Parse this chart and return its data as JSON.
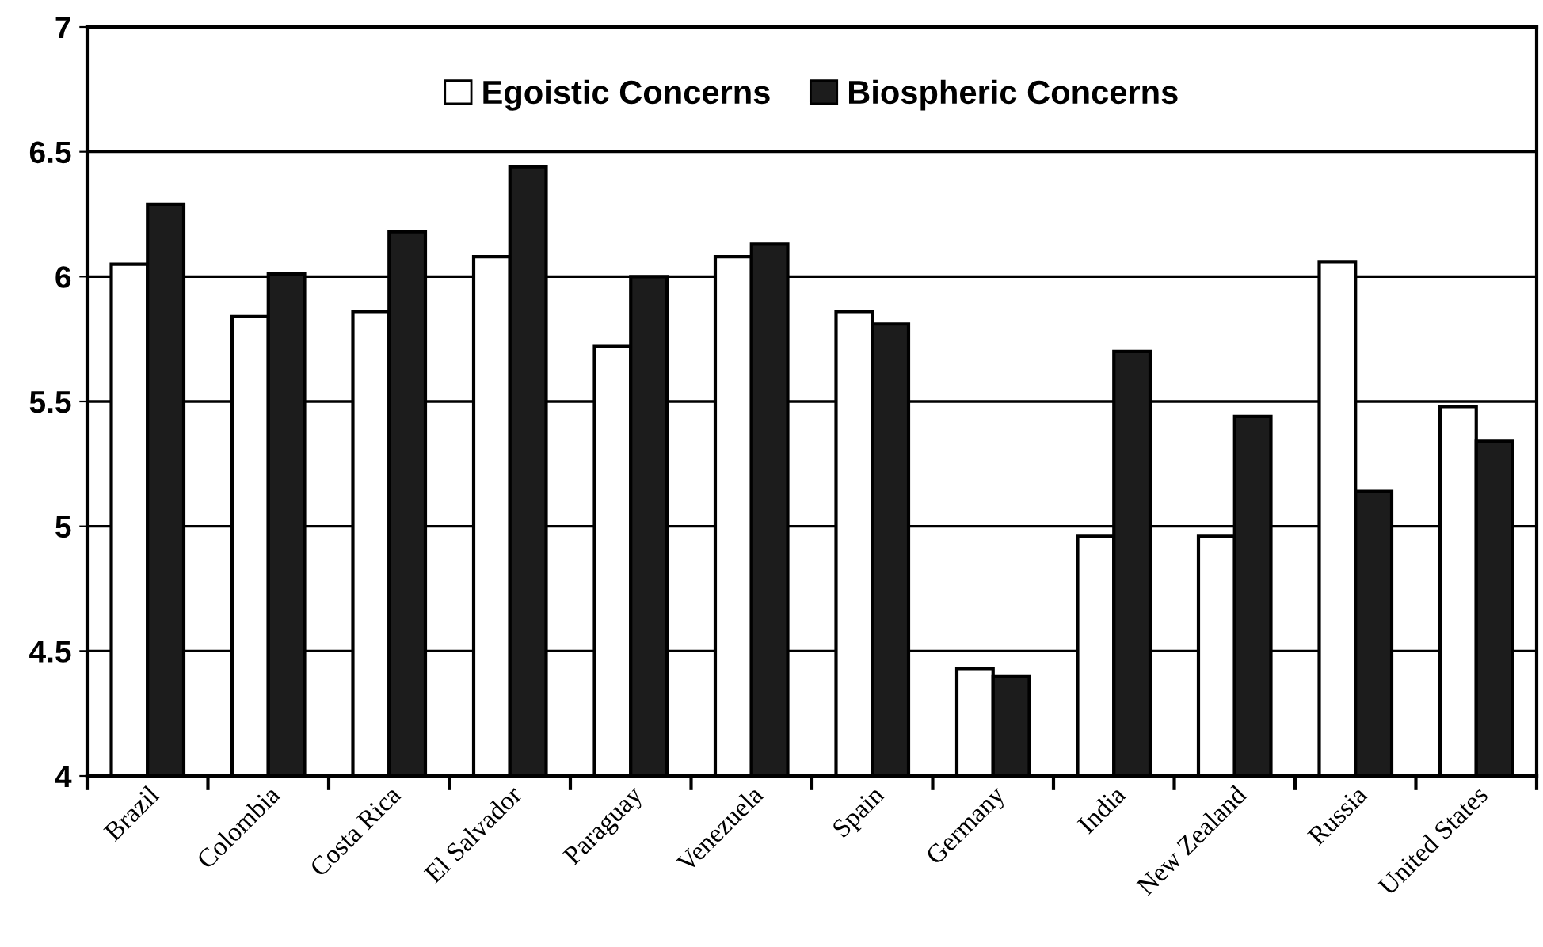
{
  "chart_data": {
    "type": "bar",
    "categories": [
      "Brazil",
      "Colombia",
      "Costa Rica",
      "El Salvador",
      "Paraguay",
      "Venezuela",
      "Spain",
      "Germany",
      "India",
      "New Zealand",
      "Russia",
      "United States"
    ],
    "series": [
      {
        "name": "Egoistic Concerns",
        "color": "#ffffff",
        "values": [
          6.05,
          5.84,
          5.86,
          6.08,
          5.72,
          6.08,
          5.86,
          4.43,
          4.96,
          4.96,
          6.06,
          5.48
        ]
      },
      {
        "name": "Biospheric Concerns",
        "color": "#1c1c1c",
        "values": [
          6.29,
          6.01,
          6.18,
          6.44,
          6.0,
          6.13,
          5.81,
          4.4,
          5.7,
          5.44,
          5.14,
          5.34
        ]
      }
    ],
    "ylim": [
      4,
      7
    ],
    "yticks": [
      4,
      4.5,
      5,
      5.5,
      6,
      6.5,
      7
    ],
    "grid": "y",
    "legend": "top"
  }
}
